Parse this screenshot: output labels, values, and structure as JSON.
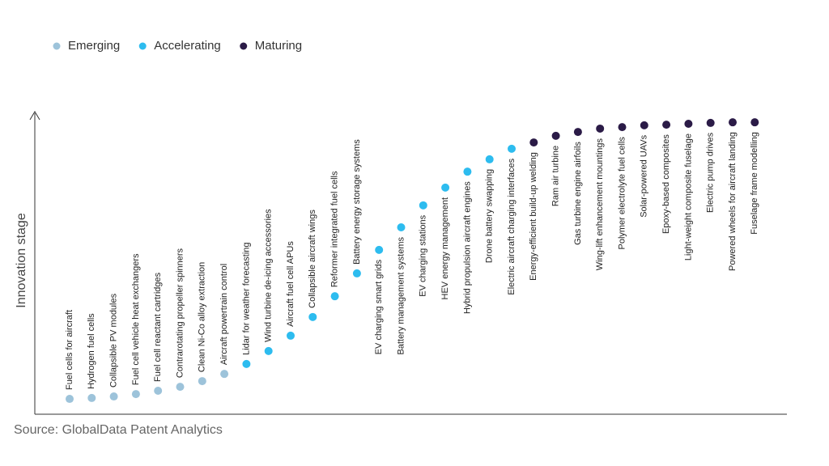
{
  "chart_data": {
    "type": "scatter",
    "y_label": "Innovation stage",
    "source": "Source: GlobalData Patent Analytics",
    "ylim": [
      0,
      100
    ],
    "categories": [
      "Fuel cells for aircraft",
      "Hydrogen fuel cells",
      "Collapsible PV modules",
      "Fuel cell vehicle heat exchangers",
      "Fuel cell reactant cartridges",
      "Contrarotating propeller spinners",
      "Clean Ni-Co alloy extraction",
      "Aircraft powertrain control",
      "Lidar for weather forecasting",
      "Wind turbine de-icing accessories",
      "Aircraft fuel cell APUs",
      "Collapsible aircraft wings",
      "Reformer integrated fuel cells",
      "Battery energy storage systems",
      "EV charging smart grids",
      "Battery management systems",
      "EV charging stations",
      "HEV energy management",
      "Hybrid propulsion aircraft engines",
      "Drone battery swapping",
      "Electric aircraft charging interfaces",
      "Energy-efficient build-up welding",
      "Ram air turbine",
      "Gas turbine engine airfoils",
      "Wing-lift enhancement mountings",
      "Polymer electrolyte fuel cells",
      "Solar-powered UAVs",
      "Epoxy-based composites",
      "Light-weight composite fuselage",
      "Electric pump drives",
      "Powered wheels for aircraft landing",
      "Fuselage frame modelling"
    ],
    "series": [
      {
        "name": "Emerging",
        "color": "#9dc3da",
        "values": [
          5.1,
          5.4,
          5.9,
          6.7,
          7.8,
          9.1,
          11.0,
          13.4,
          null,
          null,
          null,
          null,
          null,
          null,
          null,
          null,
          null,
          null,
          null,
          null,
          null,
          null,
          null,
          null,
          null,
          null,
          null,
          null,
          null,
          null,
          null,
          null
        ]
      },
      {
        "name": "Accelerating",
        "color": "#2dbcef",
        "values": [
          null,
          null,
          null,
          null,
          null,
          null,
          null,
          null,
          16.7,
          21.0,
          26.1,
          32.3,
          39.2,
          46.8,
          54.6,
          62.1,
          69.4,
          75.3,
          80.6,
          84.7,
          88.2,
          null,
          null,
          null,
          null,
          null,
          null,
          null,
          null,
          null,
          null,
          null
        ]
      },
      {
        "name": "Maturing",
        "color": "#2b1b47",
        "values": [
          null,
          null,
          null,
          null,
          null,
          null,
          null,
          null,
          null,
          null,
          null,
          null,
          null,
          null,
          null,
          null,
          null,
          null,
          null,
          null,
          null,
          90.3,
          92.5,
          93.8,
          94.9,
          95.4,
          96.0,
          96.2,
          96.5,
          96.8,
          97.0,
          97.0
        ]
      }
    ]
  }
}
